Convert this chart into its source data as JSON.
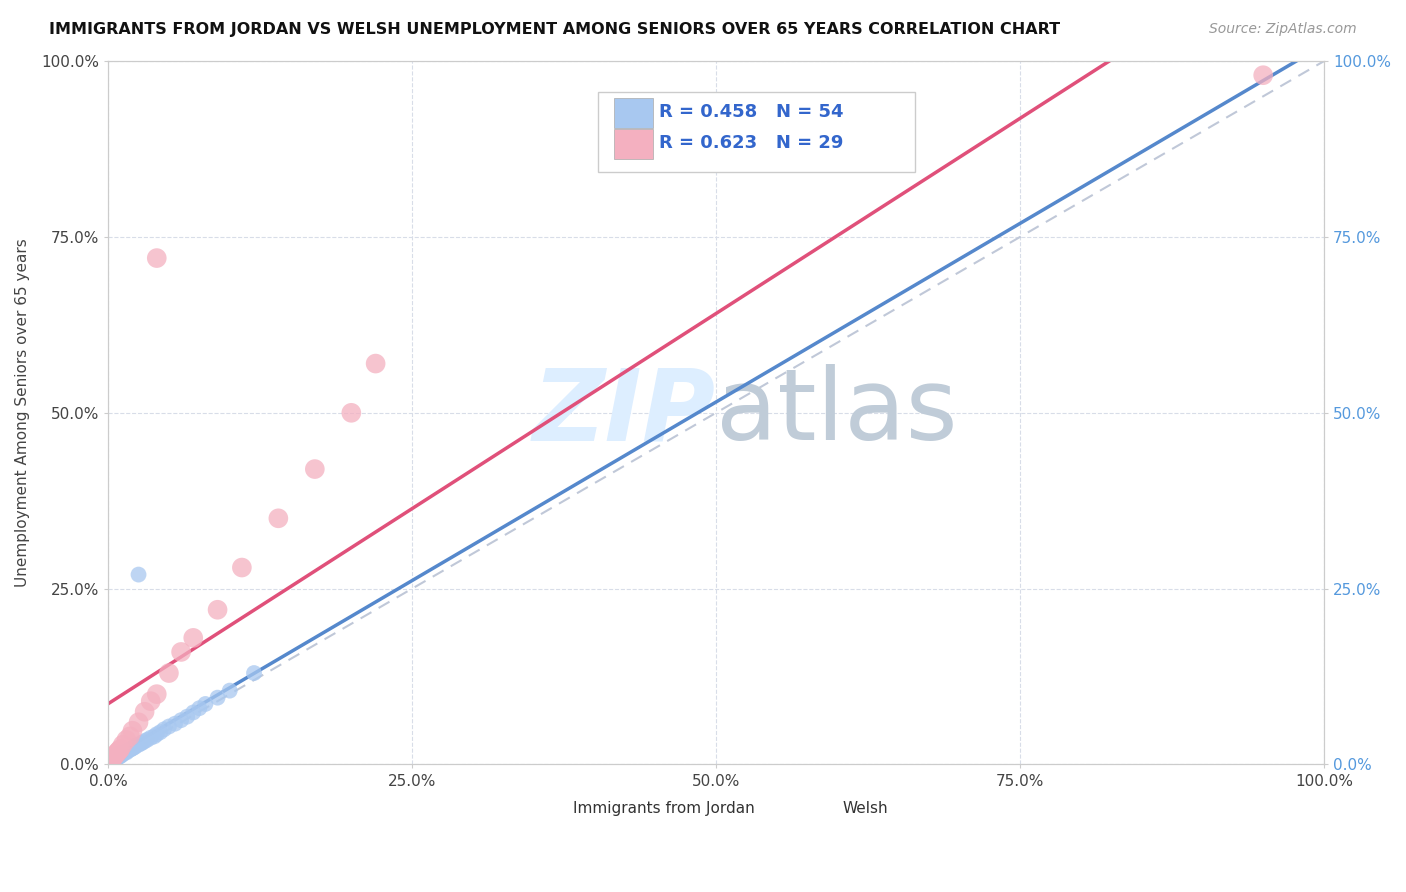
{
  "title": "IMMIGRANTS FROM JORDAN VS WELSH UNEMPLOYMENT AMONG SENIORS OVER 65 YEARS CORRELATION CHART",
  "source": "Source: ZipAtlas.com",
  "ylabel": "Unemployment Among Seniors over 65 years",
  "x_ticks": [
    0,
    0.25,
    0.5,
    0.75,
    1.0
  ],
  "x_tick_labels": [
    "0.0%",
    "25.0%",
    "50.0%",
    "75.0%",
    "100.0%"
  ],
  "y_ticks": [
    0,
    0.25,
    0.5,
    0.75,
    1.0
  ],
  "y_tick_labels": [
    "0.0%",
    "25.0%",
    "50.0%",
    "75.0%",
    "100.0%"
  ],
  "jordan_color": "#a8c8f0",
  "jordan_line_color": "#5588cc",
  "welsh_color": "#f4b0c0",
  "welsh_line_color": "#e0507a",
  "diag_line_color": "#c0c8d8",
  "background_color": "#ffffff",
  "grid_color": "#d8dde8",
  "legend_jordan_R": "R = 0.458",
  "legend_jordan_N": "N = 54",
  "legend_welsh_R": "R = 0.623",
  "legend_welsh_N": "N = 29",
  "legend_text_color": "#3366cc",
  "watermark_zip_color": "#ddeeff",
  "watermark_atlas_color": "#c0ccd8",
  "right_tick_color": "#5599dd",
  "jordan_scatter_x": [
    0.001,
    0.002,
    0.002,
    0.003,
    0.003,
    0.003,
    0.004,
    0.004,
    0.005,
    0.005,
    0.005,
    0.006,
    0.006,
    0.007,
    0.007,
    0.008,
    0.008,
    0.009,
    0.009,
    0.01,
    0.01,
    0.011,
    0.012,
    0.013,
    0.014,
    0.015,
    0.016,
    0.018,
    0.019,
    0.02,
    0.021,
    0.022,
    0.023,
    0.025,
    0.027,
    0.028,
    0.03,
    0.032,
    0.035,
    0.038,
    0.04,
    0.043,
    0.046,
    0.05,
    0.055,
    0.06,
    0.065,
    0.07,
    0.075,
    0.08,
    0.09,
    0.1,
    0.12,
    0.025
  ],
  "jordan_scatter_y": [
    0.002,
    0.003,
    0.005,
    0.004,
    0.006,
    0.008,
    0.005,
    0.009,
    0.006,
    0.01,
    0.012,
    0.008,
    0.011,
    0.009,
    0.013,
    0.01,
    0.014,
    0.011,
    0.015,
    0.012,
    0.016,
    0.013,
    0.015,
    0.016,
    0.018,
    0.017,
    0.019,
    0.021,
    0.022,
    0.023,
    0.024,
    0.025,
    0.027,
    0.028,
    0.03,
    0.031,
    0.033,
    0.035,
    0.038,
    0.04,
    0.043,
    0.046,
    0.05,
    0.054,
    0.058,
    0.063,
    0.068,
    0.074,
    0.08,
    0.086,
    0.095,
    0.105,
    0.13,
    0.27
  ],
  "welsh_scatter_x": [
    0.001,
    0.002,
    0.003,
    0.004,
    0.005,
    0.006,
    0.007,
    0.008,
    0.009,
    0.01,
    0.012,
    0.015,
    0.018,
    0.02,
    0.025,
    0.03,
    0.035,
    0.04,
    0.05,
    0.06,
    0.07,
    0.09,
    0.11,
    0.14,
    0.17,
    0.2,
    0.22,
    0.04,
    0.95
  ],
  "welsh_scatter_y": [
    0.003,
    0.005,
    0.007,
    0.009,
    0.012,
    0.014,
    0.016,
    0.018,
    0.02,
    0.022,
    0.028,
    0.035,
    0.04,
    0.048,
    0.06,
    0.075,
    0.09,
    0.1,
    0.13,
    0.16,
    0.18,
    0.22,
    0.28,
    0.35,
    0.42,
    0.5,
    0.57,
    0.72,
    0.98
  ]
}
